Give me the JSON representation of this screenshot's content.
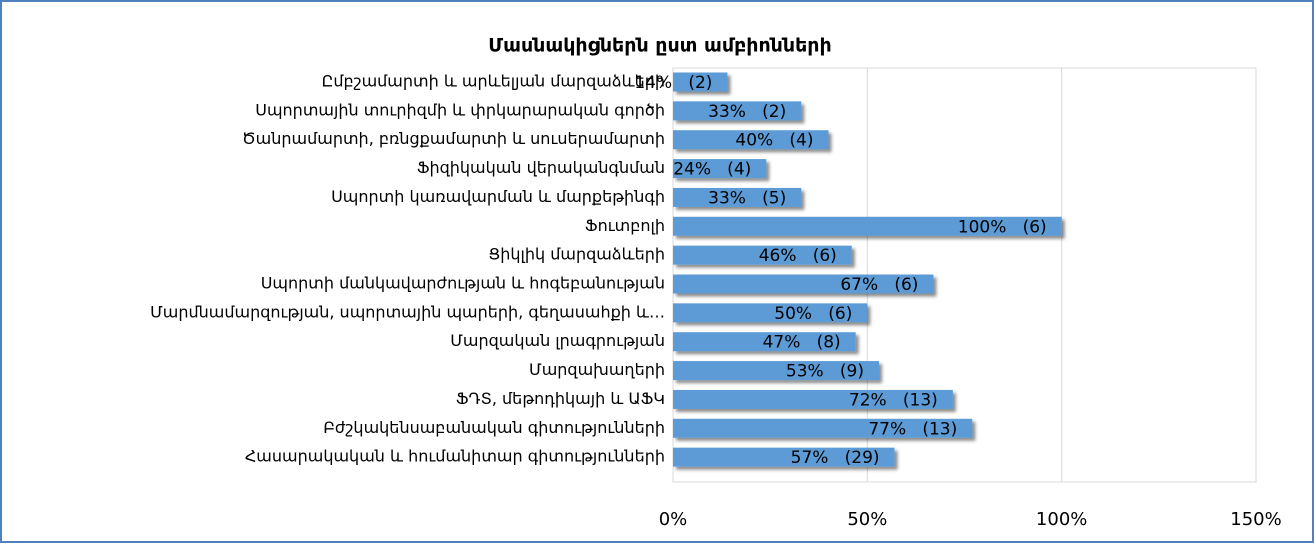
{
  "chart_data": {
    "type": "bar",
    "orientation": "horizontal",
    "title": "Մասնակիցներն ըստ ամբիոնների",
    "categories": [
      "Ըմբշամարտի և արևելյան մարզաձևերի",
      "Սպորտային տուրիզմի և փրկարարական գործի",
      "Ծանրամարտի, բռնցքամարտի և սուսերամարտի",
      "Ֆիզիկական վերականգնման ",
      "Սպորտի կառավարման և մարքեթինգի",
      "Ֆուտբոլի",
      "Ցիկլիկ մարզաձևերի",
      "Սպորտի մանկավարժության և հոգեբանության",
      "Մարմնամարզության, սպորտային պարերի, գեղասահքի և…",
      "Մարզական լրագրության",
      "Մարզախաղերի ",
      "ՖԴՏ, մեթոդիկայի և ԱՖԿ",
      "Բժշկակենսաբանական գիտությունների ",
      "Հասարակական և հումանիտար գիտությունների "
    ],
    "values": [
      14,
      33,
      40,
      24,
      33,
      100,
      46,
      67,
      50,
      47,
      53,
      72,
      77,
      57
    ],
    "value_labels": [
      "14%   (2)",
      "33%   (2)",
      "40%   (4)",
      "24%   (4)",
      "33%   (5)",
      "100%   (6)",
      "46%   (6)",
      "67%   (6)",
      "50%   (6)",
      "47%   (8)",
      "53%   (9)",
      "72%   (13)",
      "77%   (13)",
      "57%   (29)"
    ],
    "color": "#5b9bd5",
    "xlim": [
      0,
      150
    ],
    "xticks": [
      {
        "value": 0,
        "label": "0%"
      },
      {
        "value": 50,
        "label": "50%"
      },
      {
        "value": 100,
        "label": "100%"
      },
      {
        "value": 150,
        "label": "150%"
      }
    ],
    "grid": true
  }
}
